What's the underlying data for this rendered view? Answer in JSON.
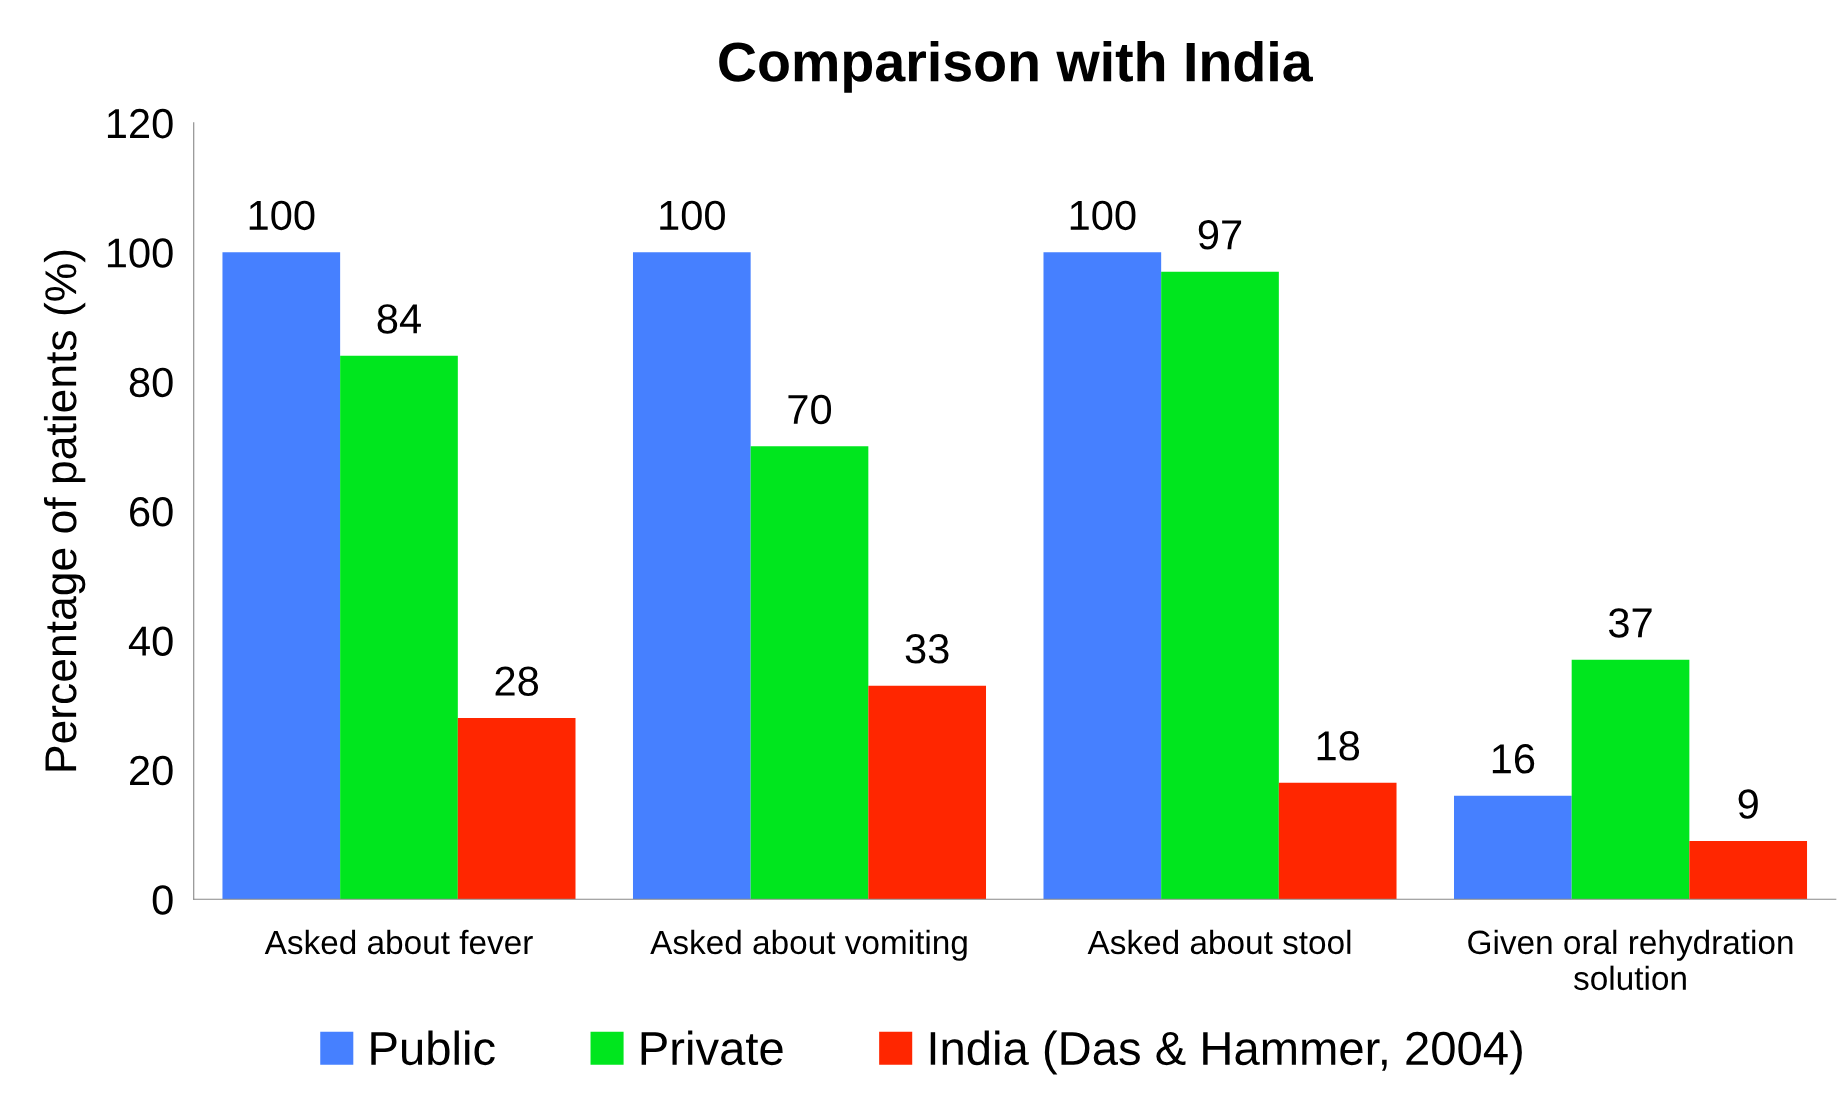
{
  "chart_data": {
    "type": "bar",
    "title": "Comparison with India",
    "ylabel": "Percentage of patients (%)",
    "categories": [
      "Asked about fever",
      "Asked about vomiting",
      "Asked about stool",
      "Given oral rehydration\nsolution"
    ],
    "series": [
      {
        "name": "Public",
        "color": "#4680ff",
        "values": [
          100,
          100,
          100,
          16
        ]
      },
      {
        "name": "Private",
        "color": "#00e61e",
        "values": [
          84,
          70,
          97,
          37
        ]
      },
      {
        "name": "India (Das & Hammer, 2004)",
        "color": "#ff2600",
        "values": [
          28,
          33,
          18,
          9
        ]
      }
    ],
    "ylim": [
      0,
      120
    ],
    "yticks": [
      0,
      20,
      40,
      60,
      80,
      100,
      120
    ],
    "data_labels": true,
    "grid": false,
    "legend": "bottom"
  }
}
